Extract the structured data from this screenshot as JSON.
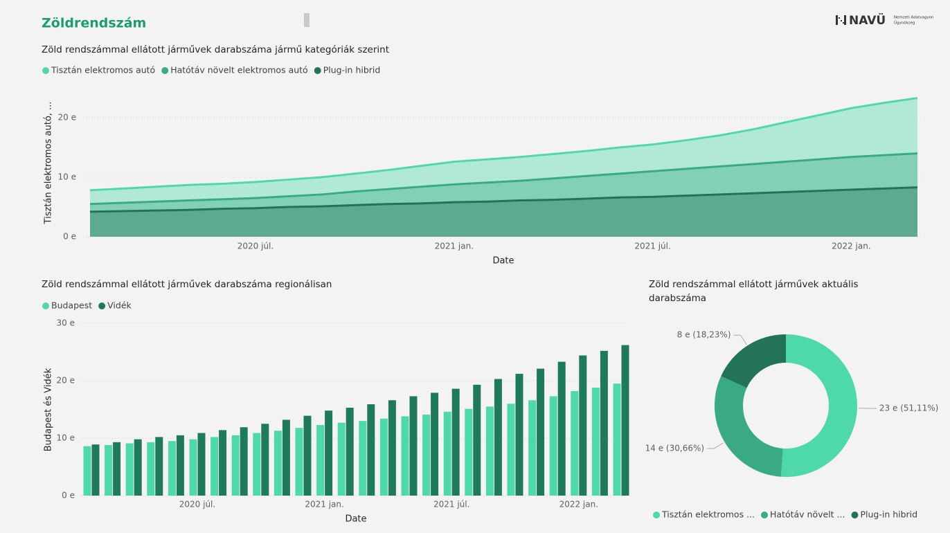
{
  "header": {
    "title": "Zöldrendszám",
    "logo": "NAVÜ",
    "logo_subtitle": [
      "Nemzeti Adatvagyon",
      "Ügynökség"
    ]
  },
  "chart_data": [
    {
      "type": "area",
      "title": "Zöld rendszámmal ellátott járművek darabszáma jármű kategóriák szerint",
      "x_label": "Date",
      "y_label": "Tisztán elektromos autó, ...",
      "categories": [
        null,
        null,
        null,
        null,
        null,
        "2020 júl.",
        null,
        null,
        null,
        null,
        null,
        "2021 jan.",
        null,
        null,
        null,
        null,
        null,
        "2021 júl.",
        null,
        null,
        null,
        null,
        null,
        "2022 jan.",
        null,
        null
      ],
      "series": [
        {
          "name": "Tisztán elektromos autó",
          "color": "#4fd9ab",
          "values": [
            7.8,
            8.1,
            8.4,
            8.7,
            8.9,
            9.2,
            9.6,
            10.0,
            10.6,
            11.2,
            11.9,
            12.6,
            13.0,
            13.4,
            13.9,
            14.4,
            15.0,
            15.5,
            16.2,
            17.0,
            18.0,
            19.2,
            20.4,
            21.6,
            22.5,
            23.3
          ]
        },
        {
          "name": "Hatótáv növelt elektromos autó",
          "color": "#3aaa86",
          "values": [
            5.5,
            5.7,
            5.9,
            6.1,
            6.3,
            6.5,
            6.8,
            7.1,
            7.6,
            8.0,
            8.4,
            8.8,
            9.1,
            9.4,
            9.8,
            10.2,
            10.6,
            11.0,
            11.4,
            11.8,
            12.2,
            12.6,
            13.0,
            13.4,
            13.7,
            14.0
          ]
        },
        {
          "name": "Plug-in hibrid",
          "color": "#23735a",
          "values": [
            4.2,
            4.3,
            4.4,
            4.5,
            4.7,
            4.8,
            5.0,
            5.1,
            5.3,
            5.5,
            5.6,
            5.8,
            5.9,
            6.1,
            6.2,
            6.4,
            6.6,
            6.7,
            6.9,
            7.1,
            7.3,
            7.5,
            7.7,
            7.9,
            8.1,
            8.3
          ]
        }
      ],
      "ylim": [
        0,
        25
      ],
      "yticks": [
        {
          "value": 0,
          "label": "0 e"
        },
        {
          "value": 10,
          "label": "10 e"
        },
        {
          "value": 20,
          "label": "20 e"
        }
      ],
      "grid": true
    },
    {
      "type": "bar",
      "title": "Zöld rendszámmal ellátott járművek darabszáma regionálisan",
      "x_label": "Date",
      "y_label": "Budapest és Vidék",
      "categories": [
        null,
        null,
        null,
        null,
        null,
        "2020 júl.",
        null,
        null,
        null,
        null,
        null,
        "2021 jan.",
        null,
        null,
        null,
        null,
        null,
        "2021 júl.",
        null,
        null,
        null,
        null,
        null,
        "2022 jan.",
        null,
        null
      ],
      "series": [
        {
          "name": "Budapest",
          "color": "#4fd9ab",
          "values": [
            8.6,
            8.8,
            9.1,
            9.3,
            9.5,
            9.8,
            10.2,
            10.5,
            10.9,
            11.3,
            11.8,
            12.3,
            12.7,
            13.0,
            13.4,
            13.8,
            14.1,
            14.6,
            15.1,
            15.5,
            16.0,
            16.6,
            17.3,
            18.2,
            18.8,
            19.5
          ]
        },
        {
          "name": "Vidék",
          "color": "#1f7a5b",
          "values": [
            8.9,
            9.3,
            9.8,
            10.2,
            10.5,
            10.9,
            11.4,
            11.9,
            12.5,
            13.2,
            13.9,
            14.8,
            15.3,
            15.9,
            16.6,
            17.3,
            17.9,
            18.6,
            19.3,
            20.3,
            21.2,
            22.1,
            23.3,
            24.4,
            25.2,
            26.2
          ]
        }
      ],
      "ylim": [
        0,
        30
      ],
      "yticks": [
        {
          "value": 0,
          "label": "0 e"
        },
        {
          "value": 10,
          "label": "10 e"
        },
        {
          "value": 20,
          "label": "20 e"
        },
        {
          "value": 30,
          "label": "30 e"
        }
      ],
      "grid": true
    },
    {
      "type": "pie",
      "title": "Zöld rendszámmal ellátott járművek aktuális darabszáma",
      "donut": true,
      "categories": [
        "Tisztán elektromos ...",
        "Hatótáv növelt ...",
        "Plug-in hibrid"
      ],
      "values": [
        23.3,
        14.0,
        8.3
      ],
      "value_labels": [
        "23 e (51,11%)",
        "14 e (30,66%)",
        "8 e (18,23%)"
      ],
      "colors": [
        "#4fd9ab",
        "#3aaa86",
        "#23735a"
      ]
    }
  ]
}
